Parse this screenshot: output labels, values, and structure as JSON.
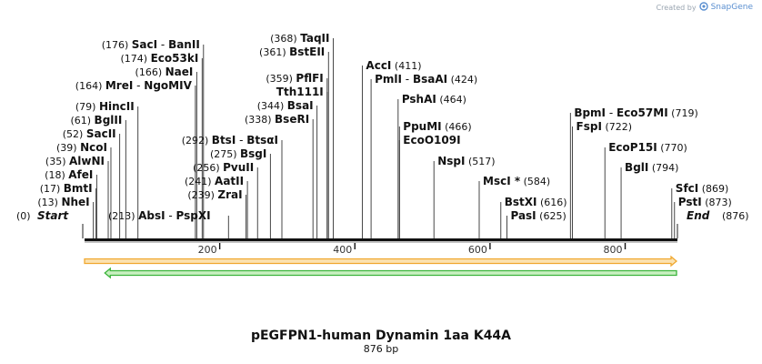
{
  "credit": {
    "prefix": "Created by",
    "brand": "SnapGene"
  },
  "title": "pEGFPN1-human Dynamin 1aa K44A",
  "subtitle": "876 bp",
  "sequence_length": 876,
  "endpoints": [
    {
      "name": "Start",
      "pos": 0,
      "pos_text": "(0)"
    },
    {
      "name": "End",
      "pos": 876,
      "pos_text": "(876)"
    }
  ],
  "ticks": [
    {
      "pos": 200,
      "label": "200"
    },
    {
      "pos": 400,
      "label": "400"
    },
    {
      "pos": 600,
      "label": "600"
    },
    {
      "pos": 800,
      "label": "800"
    }
  ],
  "sites": [
    {
      "id": "nhei",
      "names": [
        "NheI"
      ],
      "pos": 13,
      "pos_text": "(13)",
      "side": "left"
    },
    {
      "id": "bmti",
      "names": [
        "BmtI"
      ],
      "pos": 17,
      "pos_text": "(17)",
      "side": "left"
    },
    {
      "id": "afei",
      "names": [
        "AfeI"
      ],
      "pos": 18,
      "pos_text": "(18)",
      "side": "left"
    },
    {
      "id": "alwni",
      "names": [
        "AlwNI"
      ],
      "pos": 35,
      "pos_text": "(35)",
      "side": "left"
    },
    {
      "id": "ncoi",
      "names": [
        "NcoI"
      ],
      "pos": 39,
      "pos_text": "(39)",
      "side": "left"
    },
    {
      "id": "sacii",
      "names": [
        "SacII"
      ],
      "pos": 52,
      "pos_text": "(52)",
      "side": "left"
    },
    {
      "id": "bglii",
      "names": [
        "BglII"
      ],
      "pos": 61,
      "pos_text": "(61)",
      "side": "left"
    },
    {
      "id": "hincii",
      "names": [
        "HincII"
      ],
      "pos": 79,
      "pos_text": "(79)",
      "side": "left"
    },
    {
      "id": "mrei",
      "names": [
        "MreI",
        "NgoMIV"
      ],
      "pos": 164,
      "pos_text": "(164)",
      "side": "left"
    },
    {
      "id": "naei",
      "names": [
        "NaeI"
      ],
      "pos": 166,
      "pos_text": "(166)",
      "side": "left"
    },
    {
      "id": "eco53ki",
      "names": [
        "Eco53kI"
      ],
      "pos": 174,
      "pos_text": "(174)",
      "side": "left"
    },
    {
      "id": "saci",
      "names": [
        "SacI",
        "BanII"
      ],
      "pos": 176,
      "pos_text": "(176)",
      "side": "left"
    },
    {
      "id": "absi",
      "names": [
        "AbsI",
        "PspXI"
      ],
      "pos": 213,
      "pos_text": "(213)",
      "side": "left"
    },
    {
      "id": "zrai",
      "names": [
        "ZraI"
      ],
      "pos": 239,
      "pos_text": "(239)",
      "side": "left"
    },
    {
      "id": "aatii",
      "names": [
        "AatII"
      ],
      "pos": 241,
      "pos_text": "(241)",
      "side": "left"
    },
    {
      "id": "pvuii",
      "names": [
        "PvuII"
      ],
      "pos": 256,
      "pos_text": "(256)",
      "side": "left"
    },
    {
      "id": "bsgi",
      "names": [
        "BsgI"
      ],
      "pos": 275,
      "pos_text": "(275)",
      "side": "left"
    },
    {
      "id": "btsi",
      "names": [
        "BtsI",
        "BtsαI"
      ],
      "pos": 292,
      "pos_text": "(292)",
      "side": "left"
    },
    {
      "id": "bseri",
      "names": [
        "BseRI"
      ],
      "pos": 338,
      "pos_text": "(338)",
      "side": "left"
    },
    {
      "id": "bsai",
      "names": [
        "BsaI"
      ],
      "pos": 344,
      "pos_text": "(344)",
      "side": "left"
    },
    {
      "id": "tth111i",
      "names": [
        "Tth111I"
      ],
      "pos": 359,
      "pos_text": "",
      "side": "left"
    },
    {
      "id": "pflfi",
      "names": [
        "PflFI"
      ],
      "pos": 359,
      "pos_text": "(359)",
      "side": "left"
    },
    {
      "id": "bsteii",
      "names": [
        "BstEII"
      ],
      "pos": 361,
      "pos_text": "(361)",
      "side": "left"
    },
    {
      "id": "taqii",
      "names": [
        "TaqII"
      ],
      "pos": 368,
      "pos_text": "(368)",
      "side": "left"
    },
    {
      "id": "acci",
      "names": [
        "AccI"
      ],
      "pos": 411,
      "pos_text": "(411)",
      "side": "right"
    },
    {
      "id": "pmli",
      "names": [
        "PmlI",
        "BsaAI"
      ],
      "pos": 424,
      "pos_text": "(424)",
      "side": "right"
    },
    {
      "id": "pshai",
      "names": [
        "PshAI"
      ],
      "pos": 464,
      "pos_text": "(464)",
      "side": "right"
    },
    {
      "id": "ppumi",
      "names": [
        "PpuMI"
      ],
      "pos": 466,
      "pos_text": "(466)",
      "side": "right"
    },
    {
      "id": "ecoo109i",
      "names": [
        "EcoO109I"
      ],
      "pos": 466,
      "pos_text": "",
      "side": "right"
    },
    {
      "id": "nspi",
      "names": [
        "NspI"
      ],
      "pos": 517,
      "pos_text": "(517)",
      "side": "right"
    },
    {
      "id": "msci",
      "names": [
        "MscI *"
      ],
      "pos": 584,
      "pos_text": "(584)",
      "side": "right"
    },
    {
      "id": "bstxi",
      "names": [
        "BstXI"
      ],
      "pos": 616,
      "pos_text": "(616)",
      "side": "right"
    },
    {
      "id": "pasi",
      "names": [
        "PasI"
      ],
      "pos": 625,
      "pos_text": "(625)",
      "side": "right"
    },
    {
      "id": "bpmi",
      "names": [
        "BpmI",
        "Eco57MI"
      ],
      "pos": 719,
      "pos_text": "(719)",
      "side": "right"
    },
    {
      "id": "fspi",
      "names": [
        "FspI"
      ],
      "pos": 722,
      "pos_text": "(722)",
      "side": "right"
    },
    {
      "id": "ecop15i",
      "names": [
        "EcoP15I"
      ],
      "pos": 770,
      "pos_text": "(770)",
      "side": "right"
    },
    {
      "id": "bgli",
      "names": [
        "BglI"
      ],
      "pos": 794,
      "pos_text": "(794)",
      "side": "right"
    },
    {
      "id": "sfci",
      "names": [
        "SfcI"
      ],
      "pos": 869,
      "pos_text": "(869)",
      "side": "right"
    },
    {
      "id": "psti",
      "names": [
        "PstI"
      ],
      "pos": 873,
      "pos_text": "(873)",
      "side": "right"
    }
  ],
  "features": [
    {
      "name": "orange-feature-arrow",
      "start": 0,
      "end": 876,
      "direction": "forward",
      "color": "#f0a830",
      "fill": "#fbe2b0"
    },
    {
      "name": "green-feature-arrow",
      "start": 30,
      "end": 876,
      "direction": "reverse",
      "color": "#3cb43c",
      "fill": "#c8f0c0"
    }
  ]
}
